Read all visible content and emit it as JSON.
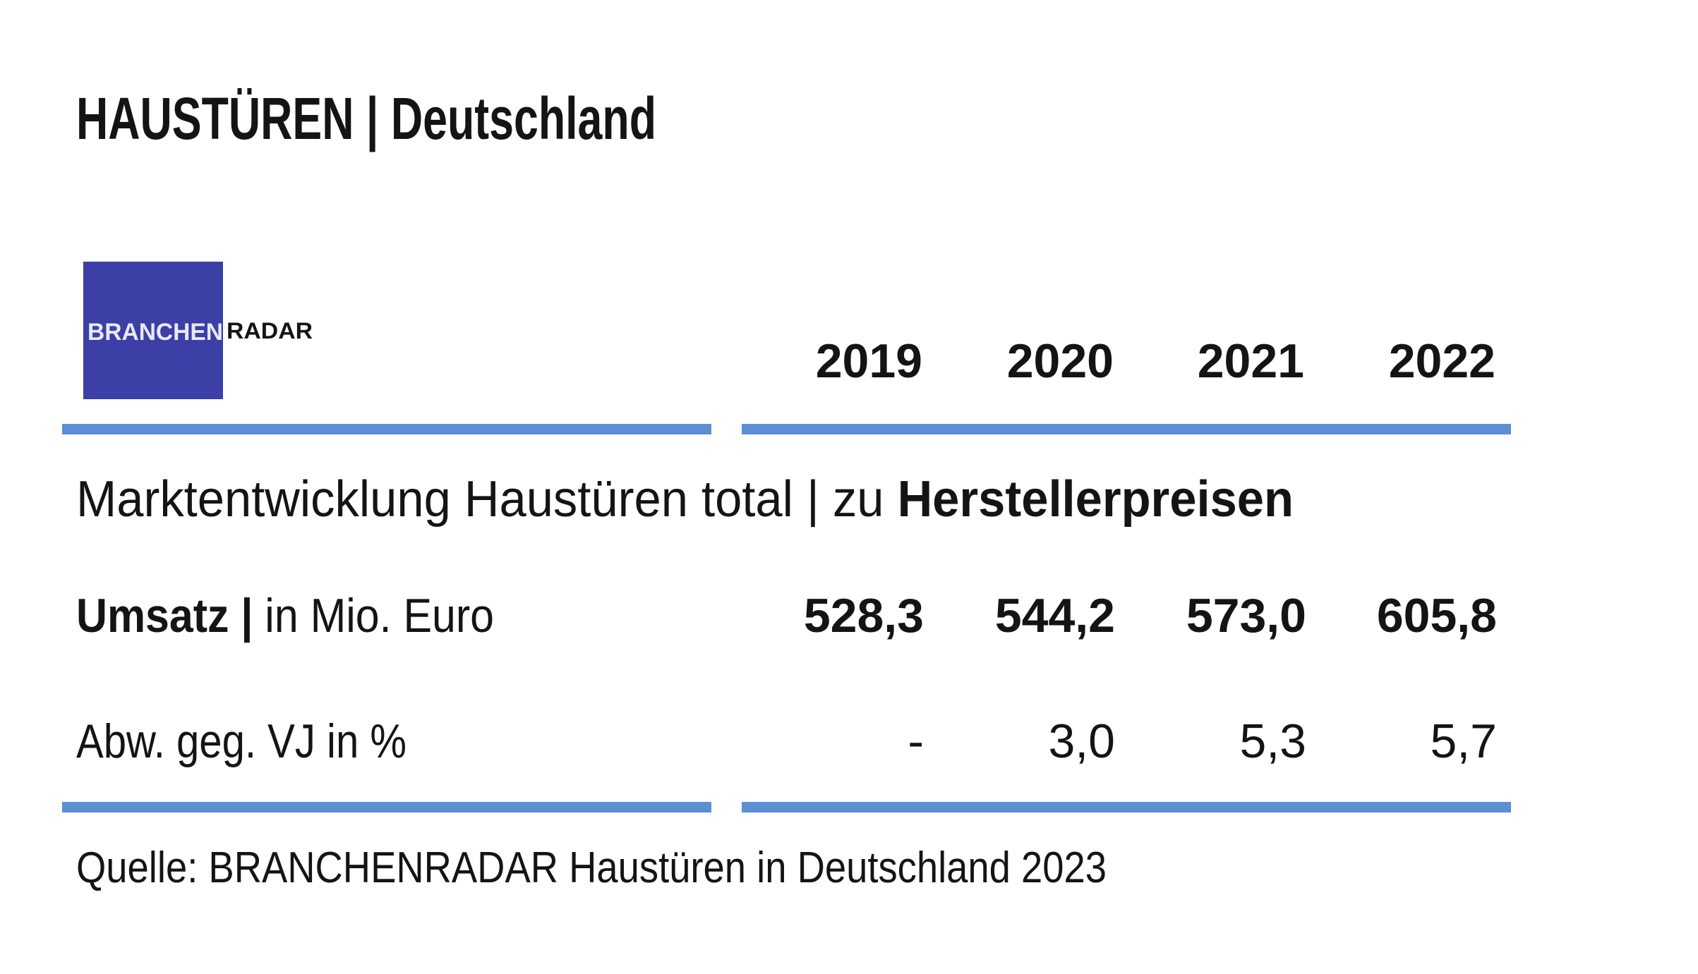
{
  "header": {
    "title": "HAUSTÜREN | Deutschland"
  },
  "logo": {
    "part1": "BRANCHEN",
    "part2": "RADAR"
  },
  "table": {
    "columns": [
      "2019",
      "2020",
      "2021",
      "2022"
    ],
    "section": {
      "text": "Marktentwicklung Haustüren total | zu ",
      "emphasis": "Herstellerpreisen"
    },
    "rows": [
      {
        "label": "Umsatz |",
        "unit": " in Mio. Euro",
        "cells": [
          "528,3",
          "544,2",
          "573,0",
          "605,8"
        ]
      },
      {
        "label": "Abw. geg. VJ in %",
        "cells": [
          "-",
          "3,0",
          "5,3",
          "5,7"
        ]
      }
    ]
  },
  "source": "Quelle: BRANCHENRADAR Haustüren in Deutschland 2023"
}
